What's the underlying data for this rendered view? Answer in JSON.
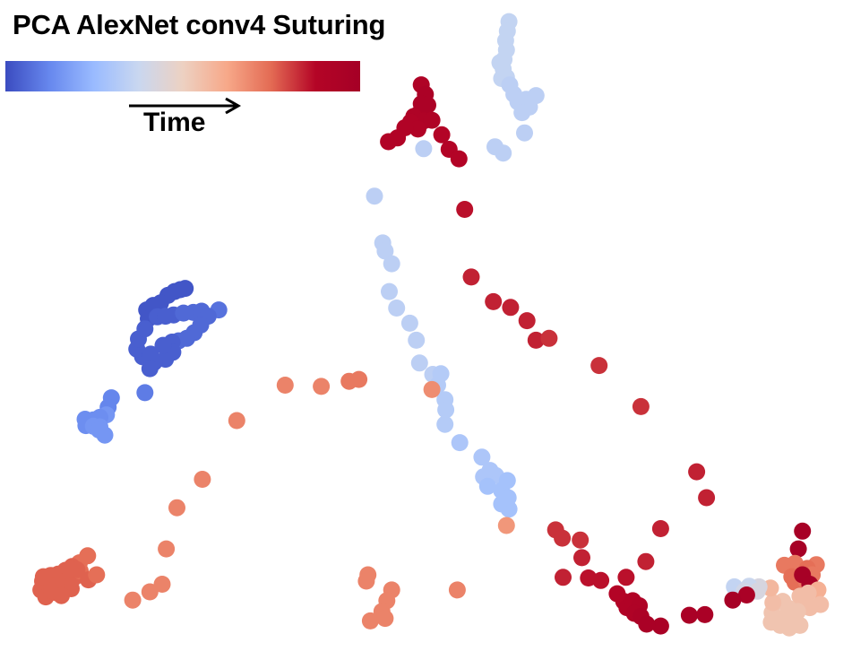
{
  "chart_data": {
    "type": "scatter",
    "title": "PCA AlexNet conv4 Suturing",
    "xlabel": "",
    "ylabel": "",
    "grid": false,
    "axes_visible": false,
    "colorbar": {
      "label": "Time",
      "colormap": "coolwarm",
      "stops": [
        "#3b4cc0",
        "#6788ee",
        "#9abbff",
        "#c9d7f0",
        "#edd1c2",
        "#f7a889",
        "#e36a53",
        "#b40426",
        "#a50026"
      ]
    },
    "point_color_hex": "t maps through colorbar.stops, 0=start 1=end",
    "xlim": [
      0,
      100
    ],
    "ylim": [
      0,
      100
    ],
    "points": [
      [
        59.9,
        98.0,
        0.36
      ],
      [
        59.7,
        96.5,
        0.36
      ],
      [
        59.5,
        95.0,
        0.36
      ],
      [
        59.6,
        93.5,
        0.36
      ],
      [
        59.3,
        92.0,
        0.36
      ],
      [
        59.2,
        90.5,
        0.36
      ],
      [
        59.0,
        89.0,
        0.36
      ],
      [
        58.8,
        91.5,
        0.36
      ],
      [
        59.6,
        89.2,
        0.36
      ],
      [
        60.0,
        88.0,
        0.34
      ],
      [
        60.5,
        86.5,
        0.34
      ],
      [
        61.0,
        85.3,
        0.34
      ],
      [
        62.0,
        85.7,
        0.34
      ],
      [
        63.2,
        86.3,
        0.34
      ],
      [
        62.4,
        84.5,
        0.34
      ],
      [
        61.5,
        83.6,
        0.34
      ],
      [
        61.8,
        80.4,
        0.34
      ],
      [
        58.2,
        78.2,
        0.34
      ],
      [
        59.2,
        77.2,
        0.34
      ],
      [
        49.2,
        88.0,
        0.92
      ],
      [
        49.7,
        86.5,
        0.94
      ],
      [
        49.2,
        85.0,
        0.94
      ],
      [
        50.0,
        84.8,
        0.94
      ],
      [
        48.9,
        83.4,
        0.94
      ],
      [
        48.3,
        83.0,
        0.92
      ],
      [
        49.5,
        82.3,
        0.92
      ],
      [
        47.9,
        82.1,
        0.9
      ],
      [
        50.5,
        82.4,
        0.92
      ],
      [
        48.8,
        81.0,
        0.9
      ],
      [
        47.2,
        81.2,
        0.9
      ],
      [
        46.3,
        79.6,
        0.9
      ],
      [
        45.2,
        79.0,
        0.9
      ],
      [
        51.7,
        80.1,
        0.88
      ],
      [
        52.6,
        77.8,
        0.88
      ],
      [
        53.8,
        76.3,
        0.88
      ],
      [
        49.5,
        77.9,
        0.34
      ],
      [
        54.5,
        68.3,
        0.86
      ],
      [
        55.3,
        57.6,
        0.84
      ],
      [
        58.0,
        53.7,
        0.84
      ],
      [
        60.1,
        52.8,
        0.84
      ],
      [
        62.1,
        50.7,
        0.84
      ],
      [
        63.2,
        47.6,
        0.84
      ],
      [
        64.8,
        47.9,
        0.82
      ],
      [
        70.9,
        43.6,
        0.82
      ],
      [
        76.0,
        37.1,
        0.82
      ],
      [
        43.5,
        70.4,
        0.34
      ],
      [
        44.5,
        63.0,
        0.34
      ],
      [
        44.8,
        61.7,
        0.34
      ],
      [
        45.6,
        59.7,
        0.34
      ],
      [
        45.3,
        55.3,
        0.34
      ],
      [
        46.2,
        52.7,
        0.34
      ],
      [
        47.8,
        50.3,
        0.34
      ],
      [
        48.6,
        47.6,
        0.34
      ],
      [
        49.0,
        44.0,
        0.34
      ],
      [
        50.6,
        42.2,
        0.34
      ],
      [
        51.6,
        42.3,
        0.32
      ],
      [
        51.2,
        40.5,
        0.32
      ],
      [
        52.1,
        38.2,
        0.32
      ],
      [
        52.2,
        36.6,
        0.32
      ],
      [
        52.1,
        34.3,
        0.32
      ],
      [
        53.9,
        31.4,
        0.3
      ],
      [
        56.6,
        29.1,
        0.3
      ],
      [
        57.6,
        27.0,
        0.3
      ],
      [
        58.3,
        26.2,
        0.3
      ],
      [
        56.8,
        26.0,
        0.3
      ],
      [
        57.3,
        24.5,
        0.28
      ],
      [
        59.0,
        23.8,
        0.28
      ],
      [
        59.7,
        25.4,
        0.28
      ],
      [
        59.0,
        21.7,
        0.28
      ],
      [
        59.9,
        20.9,
        0.28
      ],
      [
        59.8,
        22.7,
        0.28
      ],
      [
        50.5,
        39.8,
        0.68
      ],
      [
        59.6,
        18.3,
        0.66
      ],
      [
        20.4,
        55.8,
        0.02
      ],
      [
        19.8,
        55.6,
        0.02
      ],
      [
        19.1,
        55.3,
        0.02
      ],
      [
        18.3,
        54.7,
        0.02
      ],
      [
        17.4,
        53.5,
        0.02
      ],
      [
        16.5,
        53.1,
        0.02
      ],
      [
        15.7,
        52.4,
        0.02
      ],
      [
        15.9,
        51.0,
        0.02
      ],
      [
        17.0,
        51.3,
        0.04
      ],
      [
        18.0,
        51.4,
        0.04
      ],
      [
        19.0,
        51.6,
        0.04
      ],
      [
        20.2,
        51.9,
        0.06
      ],
      [
        21.4,
        52.0,
        0.06
      ],
      [
        22.4,
        52.2,
        0.06
      ],
      [
        24.5,
        52.4,
        0.08
      ],
      [
        23.2,
        51.4,
        0.06
      ],
      [
        22.3,
        50.0,
        0.06
      ],
      [
        21.5,
        48.8,
        0.06
      ],
      [
        20.6,
        47.9,
        0.06
      ],
      [
        19.6,
        47.5,
        0.06
      ],
      [
        18.8,
        47.3,
        0.04
      ],
      [
        18.9,
        45.7,
        0.04
      ],
      [
        18.0,
        44.6,
        0.04
      ],
      [
        16.6,
        44.1,
        0.04
      ],
      [
        15.2,
        45.0,
        0.04
      ],
      [
        14.5,
        46.2,
        0.04
      ],
      [
        14.7,
        47.8,
        0.04
      ],
      [
        15.5,
        49.4,
        0.04
      ],
      [
        16.2,
        45.4,
        0.04
      ],
      [
        17.7,
        46.8,
        0.04
      ],
      [
        16.1,
        43.1,
        0.04
      ],
      [
        15.5,
        39.3,
        0.1
      ],
      [
        11.4,
        38.5,
        0.12
      ],
      [
        11.0,
        37.0,
        0.12
      ],
      [
        10.8,
        35.8,
        0.16
      ],
      [
        10.0,
        35.4,
        0.14
      ],
      [
        9.2,
        35.0,
        0.14
      ],
      [
        8.2,
        35.1,
        0.14
      ],
      [
        8.3,
        34.1,
        0.14
      ],
      [
        9.2,
        34.0,
        0.16
      ],
      [
        10.0,
        33.9,
        0.16
      ],
      [
        10.6,
        32.6,
        0.16
      ],
      [
        9.9,
        33.4,
        0.16
      ],
      [
        32.6,
        40.5,
        0.7
      ],
      [
        37.0,
        40.3,
        0.7
      ],
      [
        40.4,
        41.1,
        0.72
      ],
      [
        41.6,
        41.4,
        0.72
      ],
      [
        26.7,
        34.9,
        0.7
      ],
      [
        22.5,
        25.6,
        0.7
      ],
      [
        19.4,
        21.1,
        0.7
      ],
      [
        18.1,
        14.6,
        0.7
      ],
      [
        17.6,
        9.0,
        0.7
      ],
      [
        16.1,
        7.8,
        0.7
      ],
      [
        14.0,
        6.5,
        0.7
      ],
      [
        8.5,
        13.5,
        0.74
      ],
      [
        7.5,
        12.4,
        0.74
      ],
      [
        6.6,
        11.8,
        0.76
      ],
      [
        5.8,
        11.2,
        0.76
      ],
      [
        4.9,
        10.6,
        0.76
      ],
      [
        4.0,
        10.4,
        0.76
      ],
      [
        3.0,
        9.5,
        0.76
      ],
      [
        2.8,
        8.1,
        0.76
      ],
      [
        3.4,
        7.0,
        0.76
      ],
      [
        4.6,
        7.7,
        0.76
      ],
      [
        5.6,
        8.4,
        0.76
      ],
      [
        6.5,
        8.3,
        0.76
      ],
      [
        5.5,
        9.4,
        0.76
      ],
      [
        6.4,
        9.4,
        0.76
      ],
      [
        4.6,
        8.8,
        0.76
      ],
      [
        4.1,
        8.0,
        0.76
      ],
      [
        5.3,
        7.2,
        0.76
      ],
      [
        6.9,
        10.1,
        0.76
      ],
      [
        7.6,
        11.1,
        0.74
      ],
      [
        8.6,
        9.7,
        0.76
      ],
      [
        9.6,
        10.5,
        0.74
      ],
      [
        3.1,
        10.2,
        0.76
      ],
      [
        7.2,
        11.3,
        0.76
      ],
      [
        6.3,
        11.4,
        0.76
      ],
      [
        42.7,
        10.5,
        0.7
      ],
      [
        42.5,
        9.5,
        0.7
      ],
      [
        45.6,
        8.1,
        0.7
      ],
      [
        45.0,
        6.4,
        0.7
      ],
      [
        44.4,
        4.7,
        0.7
      ],
      [
        43.0,
        3.2,
        0.7
      ],
      [
        44.8,
        3.6,
        0.7
      ],
      [
        53.6,
        8.1,
        0.7
      ],
      [
        65.6,
        17.6,
        0.82
      ],
      [
        66.4,
        16.3,
        0.82
      ],
      [
        68.6,
        16.0,
        0.82
      ],
      [
        68.8,
        13.2,
        0.84
      ],
      [
        78.4,
        17.8,
        0.84
      ],
      [
        82.8,
        26.8,
        0.84
      ],
      [
        84.0,
        22.7,
        0.84
      ],
      [
        76.6,
        12.6,
        0.84
      ],
      [
        74.2,
        10.1,
        0.86
      ],
      [
        66.5,
        10.1,
        0.84
      ],
      [
        69.6,
        10.0,
        0.86
      ],
      [
        71.1,
        9.6,
        0.86
      ],
      [
        73.1,
        7.5,
        0.88
      ],
      [
        73.9,
        6.3,
        0.88
      ],
      [
        74.3,
        5.3,
        0.9
      ],
      [
        75.0,
        6.4,
        0.9
      ],
      [
        75.8,
        5.6,
        0.92
      ],
      [
        75.2,
        4.4,
        0.92
      ],
      [
        76.0,
        3.9,
        0.94
      ],
      [
        78.4,
        2.4,
        0.96
      ],
      [
        76.7,
        2.7,
        0.96
      ],
      [
        81.9,
        4.1,
        0.96
      ],
      [
        83.8,
        4.2,
        0.96
      ],
      [
        95.7,
        17.4,
        0.98
      ],
      [
        95.2,
        14.6,
        0.98
      ],
      [
        94.8,
        12.3,
        0.72
      ],
      [
        93.5,
        12.0,
        0.72
      ],
      [
        97.4,
        12.1,
        0.72
      ],
      [
        96.3,
        11.5,
        0.74
      ],
      [
        95.7,
        10.3,
        0.74
      ],
      [
        96.9,
        10.5,
        0.72
      ],
      [
        94.4,
        10.2,
        0.74
      ],
      [
        94.8,
        9.3,
        0.74
      ],
      [
        96.2,
        9.4,
        0.72
      ],
      [
        95.7,
        10.5,
        0.98
      ],
      [
        96.6,
        9.0,
        0.98
      ],
      [
        97.6,
        8.1,
        0.6
      ],
      [
        96.4,
        7.6,
        0.56
      ],
      [
        95.4,
        7.1,
        0.56
      ],
      [
        97.9,
        5.8,
        0.56
      ],
      [
        96.6,
        5.3,
        0.56
      ],
      [
        95.1,
        4.7,
        0.54
      ],
      [
        94.0,
        5.2,
        0.54
      ],
      [
        93.3,
        6.3,
        0.54
      ],
      [
        94.6,
        3.4,
        0.54
      ],
      [
        93.3,
        3.6,
        0.54
      ],
      [
        92.0,
        4.5,
        0.54
      ],
      [
        91.9,
        3.0,
        0.54
      ],
      [
        95.4,
        2.5,
        0.54
      ],
      [
        94.1,
        2.1,
        0.54
      ],
      [
        93.0,
        2.5,
        0.54
      ],
      [
        92.1,
        6.1,
        0.56
      ],
      [
        91.8,
        8.4,
        0.58
      ],
      [
        90.4,
        8.6,
        0.42
      ],
      [
        89.2,
        8.7,
        0.38
      ],
      [
        87.4,
        8.6,
        0.36
      ],
      [
        88.6,
        7.9,
        0.4
      ],
      [
        90.2,
        7.9,
        0.42
      ],
      [
        88.9,
        7.3,
        0.96
      ],
      [
        87.2,
        6.5,
        0.98
      ]
    ]
  }
}
